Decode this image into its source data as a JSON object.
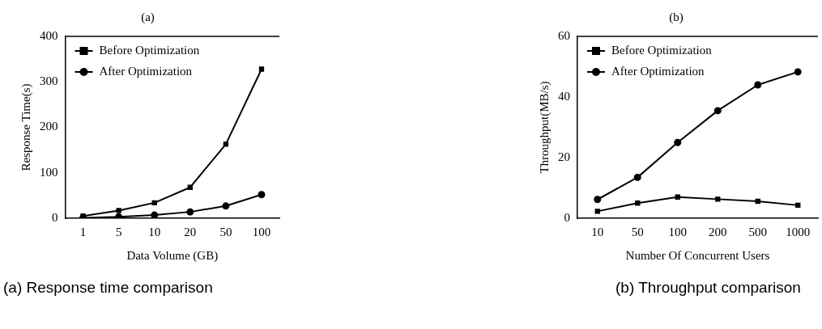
{
  "chart_data": [
    {
      "type": "line",
      "title": "(a)",
      "xlabel": "Data Volume (GB)",
      "ylabel": "Response Time(s)",
      "categories": [
        "1",
        "5",
        "10",
        "20",
        "50",
        "100"
      ],
      "series": [
        {
          "name": "Before Optimization",
          "color": "#000000",
          "marker": "square",
          "values": [
            5,
            17,
            34,
            68,
            163,
            328
          ]
        },
        {
          "name": "After Optimization",
          "color": "#000000",
          "marker": "circle",
          "values": [
            1,
            3,
            7,
            14,
            27,
            52
          ]
        }
      ],
      "ylim": [
        0,
        400
      ],
      "yticks": [
        0,
        100,
        200,
        300,
        400
      ],
      "grid": false,
      "legend": "top left",
      "line_style": "solid",
      "annotations": [
        "(a) Response time comparison"
      ]
    },
    {
      "type": "line",
      "title": "(b)",
      "xlabel": "Number Of Concurrent Users",
      "ylabel": "Throughput(MB/s)",
      "categories": [
        "10",
        "50",
        "100",
        "200",
        "500",
        "1000"
      ],
      "series": [
        {
          "name": "Before Optimization",
          "color": "#000000",
          "marker": "square",
          "values": [
            2.3,
            5,
            7,
            6.3,
            5.6,
            4.3
          ]
        },
        {
          "name": "After Optimization",
          "color": "#000000",
          "marker": "circle",
          "values": [
            6.2,
            13.5,
            25,
            35.5,
            44,
            48.3
          ]
        }
      ],
      "ylim": [
        0,
        60
      ],
      "yticks": [
        0,
        20,
        40,
        60
      ],
      "grid": false,
      "legend": "top left",
      "line_style": "solid",
      "annotations": [
        "(b) Throughput comparison"
      ]
    }
  ]
}
